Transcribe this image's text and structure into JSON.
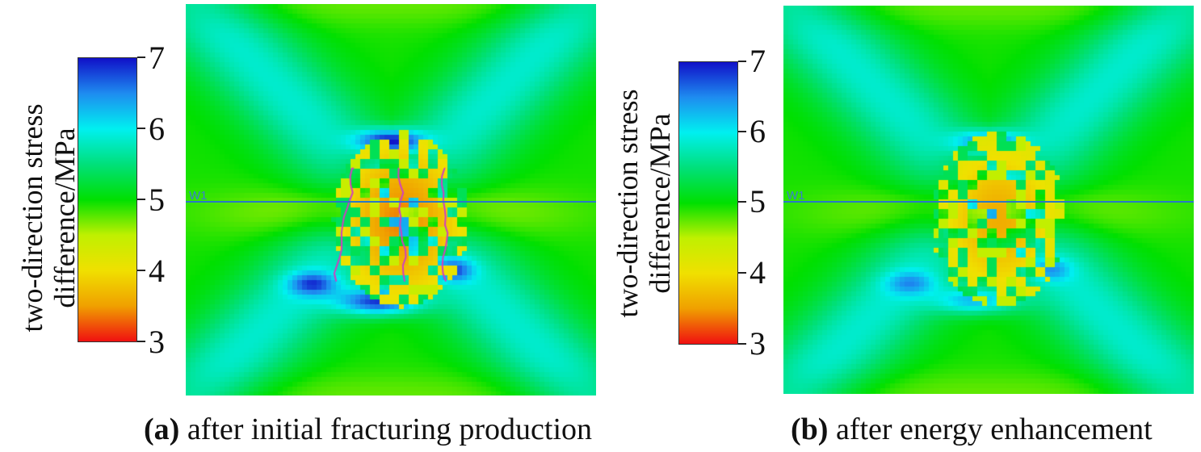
{
  "chart_data": [
    {
      "type": "heatmap",
      "panel_id": "a",
      "caption_letter": "(a)",
      "caption_text": "after initial fracturing production",
      "colorbar": {
        "label_line1": "two-direction stress",
        "label_line2": "difference/MPa",
        "min": 3,
        "max": 7,
        "ticks": [
          "7",
          "6",
          "5",
          "4",
          "3"
        ],
        "colors": [
          "#1010c8",
          "#1e8cf0",
          "#00f0f0",
          "#00e07a",
          "#00e000",
          "#c0f000",
          "#f0e000",
          "#f0a000",
          "#f01010"
        ]
      },
      "well": {
        "label": "W1",
        "color": "#2a78c8"
      },
      "fracture_color": "#d040c0",
      "background_value": 4.95,
      "features": {
        "north_low_lobe": 6.7,
        "south_low_lobe": 6.7,
        "center_high_band": 3.4,
        "horizontal_high_band": 4.4
      }
    },
    {
      "type": "heatmap",
      "panel_id": "b",
      "caption_letter": "(b)",
      "caption_text": "after energy enhancement",
      "colorbar": {
        "label_line1": "two-direction stress",
        "label_line2": "difference/MPa",
        "min": 3,
        "max": 7,
        "ticks": [
          "7",
          "6",
          "5",
          "4",
          "3"
        ],
        "colors": [
          "#1010c8",
          "#1e8cf0",
          "#00f0f0",
          "#00e07a",
          "#00e000",
          "#c0f000",
          "#f0e000",
          "#f0a000",
          "#f01010"
        ]
      },
      "well": {
        "label": "W1",
        "color": "#2a78c8"
      },
      "background_value": 4.95,
      "features": {
        "north_low_lobe": 6.2,
        "south_low_lobe": 6.1,
        "center_high_band": 3.6,
        "horizontal_high_band": 4.5
      }
    }
  ]
}
